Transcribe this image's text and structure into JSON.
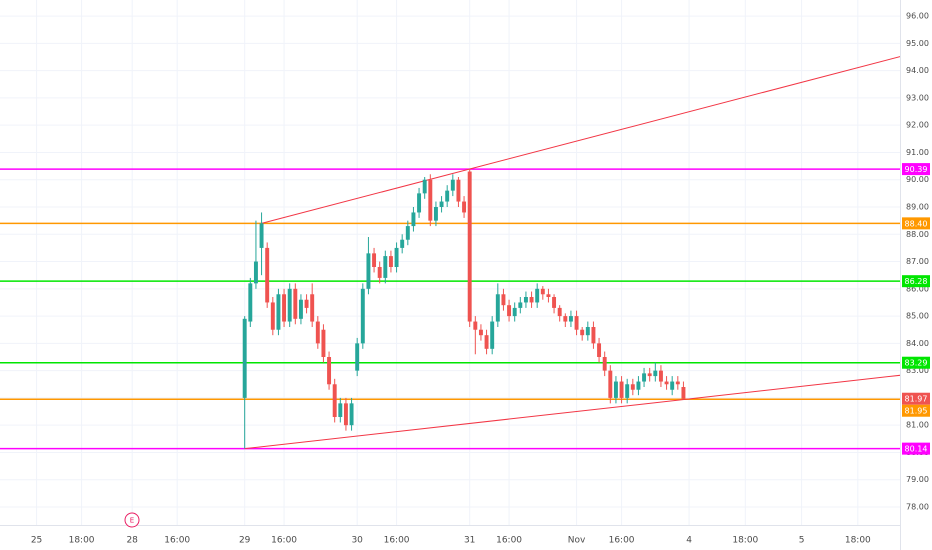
{
  "chart_data": {
    "type": "candlestick",
    "categories": [
      null,
      null,
      null,
      null,
      null,
      null,
      "25",
      null,
      null,
      null,
      null,
      null,
      null,
      null,
      "18:00",
      null,
      null,
      null,
      null,
      null,
      null,
      null,
      null,
      "28",
      null,
      null,
      null,
      null,
      null,
      null,
      null,
      "16:00",
      null,
      null,
      null,
      null,
      null,
      null,
      null,
      null,
      null,
      null,
      null,
      "29",
      null,
      null,
      null,
      null,
      null,
      null,
      "16:00",
      null,
      null,
      null,
      null,
      null,
      null,
      null,
      null,
      null,
      null,
      null,
      null,
      "30",
      null,
      null,
      null,
      null,
      null,
      null,
      "16:00",
      null,
      null,
      null,
      null,
      null,
      null,
      null,
      null,
      null,
      null,
      null,
      null,
      "31",
      null,
      null,
      null,
      null,
      null,
      null,
      "16:00",
      null,
      null,
      null,
      null,
      null,
      null,
      null,
      null,
      null,
      null,
      null,
      "Nov",
      null,
      null,
      null,
      null,
      null,
      null,
      null,
      "16:00",
      null,
      null,
      null,
      null,
      null,
      null,
      null,
      null,
      null,
      null,
      null,
      "4",
      null,
      null,
      null,
      null,
      null,
      null,
      null,
      null,
      null,
      "18:00",
      null,
      null,
      null,
      null,
      null,
      null,
      null,
      null,
      null,
      "5",
      null,
      null,
      null,
      null,
      null,
      null,
      null,
      null,
      null,
      "18:00",
      null,
      null,
      null,
      null,
      null,
      null,
      null
    ],
    "open": [
      null,
      null,
      null,
      null,
      null,
      null,
      null,
      null,
      null,
      null,
      null,
      null,
      null,
      null,
      null,
      null,
      null,
      null,
      null,
      null,
      null,
      null,
      null,
      null,
      null,
      null,
      null,
      null,
      null,
      null,
      null,
      null,
      null,
      null,
      null,
      null,
      null,
      null,
      null,
      null,
      null,
      null,
      null,
      82.0,
      84.8,
      86.2,
      87.5,
      87.5,
      85.5,
      84.5,
      85.8,
      84.8,
      86.0,
      84.9,
      85.6,
      85.8,
      84.8,
      84.5,
      83.5,
      82.5,
      81.3,
      81.8,
      81.0,
      83.0,
      84.0,
      86.0,
      87.3,
      86.8,
      86.4,
      87.2,
      86.8,
      87.5,
      87.8,
      88.3,
      88.8,
      89.5,
      90.0,
      88.5,
      89.0,
      89.2,
      89.6,
      90.0,
      89.2,
      90.3,
      84.8,
      84.5,
      84.3,
      83.8,
      84.8,
      85.8,
      85.4,
      85.0,
      85.3,
      85.5,
      85.7,
      85.5,
      86.0,
      85.8,
      85.7,
      85.3,
      85.0,
      84.8,
      85.0,
      84.5,
      84.3,
      84.6,
      84.0,
      83.5,
      83.0,
      82.0,
      82.6,
      82.0,
      82.5,
      82.3,
      82.6,
      82.9,
      82.8,
      83.0,
      82.6,
      82.3,
      82.6,
      82.4,
      null,
      null,
      null,
      null,
      null,
      null,
      null,
      null,
      null,
      null,
      null,
      null,
      null,
      null,
      null,
      null,
      null,
      null,
      null,
      null,
      null,
      null,
      null,
      null,
      null,
      null,
      null,
      null,
      null,
      null,
      null,
      null,
      null,
      null,
      null,
      null,
      null,
      null
    ],
    "high": [
      null,
      null,
      null,
      null,
      null,
      null,
      null,
      null,
      null,
      null,
      null,
      null,
      null,
      null,
      null,
      null,
      null,
      null,
      null,
      null,
      null,
      null,
      null,
      null,
      null,
      null,
      null,
      null,
      null,
      null,
      null,
      null,
      null,
      null,
      null,
      null,
      null,
      null,
      null,
      null,
      null,
      null,
      null,
      85.0,
      86.4,
      88.5,
      88.8,
      87.7,
      85.7,
      86.0,
      86.0,
      86.2,
      86.2,
      85.8,
      85.8,
      86.2,
      85.0,
      84.7,
      83.7,
      82.7,
      82.0,
      82.0,
      82.0,
      84.2,
      86.2,
      87.9,
      87.5,
      87.0,
      87.4,
      87.4,
      87.7,
      88.0,
      88.5,
      89.0,
      89.7,
      90.1,
      90.2,
      89.2,
      89.4,
      89.8,
      90.2,
      90.1,
      89.4,
      90.39,
      85.0,
      84.7,
      84.5,
      85.0,
      86.2,
      86.0,
      85.6,
      85.5,
      85.7,
      85.9,
      85.9,
      86.2,
      86.1,
      86.0,
      85.8,
      85.4,
      85.1,
      85.2,
      85.2,
      84.6,
      84.8,
      84.8,
      84.2,
      83.7,
      83.2,
      82.8,
      82.8,
      82.7,
      82.7,
      82.8,
      83.1,
      83.1,
      83.3,
      83.2,
      82.8,
      82.8,
      82.8,
      82.6,
      null,
      null,
      null,
      null,
      null,
      null,
      null,
      null,
      null,
      null,
      null,
      null,
      null,
      null,
      null,
      null,
      null,
      null,
      null,
      null,
      null,
      null,
      null,
      null,
      null,
      null,
      null,
      null,
      null,
      null,
      null,
      null,
      null,
      null,
      null,
      null,
      null,
      null
    ],
    "low": [
      null,
      null,
      null,
      null,
      null,
      null,
      null,
      null,
      null,
      null,
      null,
      null,
      null,
      null,
      null,
      null,
      null,
      null,
      null,
      null,
      null,
      null,
      null,
      null,
      null,
      null,
      null,
      null,
      null,
      null,
      null,
      null,
      null,
      null,
      null,
      null,
      null,
      null,
      null,
      null,
      null,
      null,
      null,
      80.14,
      84.6,
      86.0,
      86.5,
      85.3,
      84.3,
      84.3,
      84.6,
      84.6,
      84.7,
      84.7,
      85.1,
      84.6,
      83.8,
      83.3,
      82.3,
      81.1,
      81.1,
      80.8,
      80.8,
      82.8,
      83.8,
      85.8,
      86.6,
      86.2,
      86.2,
      86.6,
      86.6,
      87.3,
      87.6,
      88.1,
      88.6,
      89.3,
      88.3,
      88.3,
      88.8,
      89.0,
      89.4,
      89.0,
      88.6,
      84.6,
      83.6,
      84.1,
      83.6,
      83.6,
      84.6,
      85.2,
      84.8,
      84.8,
      85.1,
      85.3,
      85.3,
      85.3,
      85.6,
      85.5,
      85.1,
      84.8,
      84.6,
      84.6,
      84.3,
      84.1,
      84.1,
      83.8,
      83.3,
      82.8,
      81.8,
      81.8,
      81.8,
      81.8,
      82.1,
      82.1,
      82.4,
      82.6,
      82.6,
      82.4,
      82.3,
      82.1,
      82.3,
      81.95,
      null,
      null,
      null,
      null,
      null,
      null,
      null,
      null,
      null,
      null,
      null,
      null,
      null,
      null,
      null,
      null,
      null,
      null,
      null,
      null,
      null,
      null,
      null,
      null,
      null,
      null,
      null,
      null,
      null,
      null,
      null,
      null,
      null,
      null,
      null,
      null,
      null,
      null
    ],
    "close": [
      null,
      null,
      null,
      null,
      null,
      null,
      null,
      null,
      null,
      null,
      null,
      null,
      null,
      null,
      null,
      null,
      null,
      null,
      null,
      null,
      null,
      null,
      null,
      null,
      null,
      null,
      null,
      null,
      null,
      null,
      null,
      null,
      null,
      null,
      null,
      null,
      null,
      null,
      null,
      null,
      null,
      null,
      null,
      84.9,
      86.2,
      87.0,
      88.4,
      85.5,
      84.5,
      85.8,
      84.8,
      86.0,
      84.9,
      85.6,
      85.3,
      84.8,
      84.0,
      83.5,
      82.5,
      81.3,
      81.8,
      81.0,
      81.8,
      84.0,
      86.0,
      87.3,
      86.8,
      86.4,
      87.2,
      86.8,
      87.5,
      87.8,
      88.3,
      88.8,
      89.5,
      90.0,
      88.5,
      89.0,
      89.2,
      89.6,
      90.0,
      89.2,
      88.8,
      84.8,
      84.5,
      84.3,
      83.8,
      84.8,
      85.8,
      85.4,
      85.0,
      85.3,
      85.5,
      85.7,
      85.5,
      86.0,
      85.8,
      85.7,
      85.3,
      85.0,
      84.8,
      85.0,
      84.5,
      84.3,
      84.6,
      84.0,
      83.5,
      83.0,
      82.0,
      82.6,
      82.0,
      82.5,
      82.3,
      82.6,
      82.9,
      82.8,
      83.0,
      82.6,
      82.5,
      82.6,
      82.5,
      81.97,
      null,
      null,
      null,
      null,
      null,
      null,
      null,
      null,
      null,
      null,
      null,
      null,
      null,
      null,
      null,
      null,
      null,
      null,
      null,
      null,
      null,
      null,
      null,
      null,
      null,
      null,
      null,
      null,
      null,
      null,
      null,
      null,
      null,
      null,
      null,
      null,
      null,
      null
    ],
    "up_color": "#26a69a",
    "down_color": "#ef5350",
    "ylim": [
      77.34,
      96.59
    ],
    "yticks": [
      {
        "value": 78,
        "label": "78.00"
      },
      {
        "value": 79,
        "label": "79.00"
      },
      {
        "value": 80,
        "label": "80.00"
      },
      {
        "value": 81,
        "label": "81.00"
      },
      {
        "value": 82,
        "label": "82.00"
      },
      {
        "value": 83,
        "label": "83.00"
      },
      {
        "value": 84,
        "label": "84.00"
      },
      {
        "value": 85,
        "label": "85.00"
      },
      {
        "value": 86,
        "label": "86.00"
      },
      {
        "value": 87,
        "label": "87.00"
      },
      {
        "value": 88,
        "label": "88.00"
      },
      {
        "value": 89,
        "label": "89.00"
      },
      {
        "value": 90,
        "label": "90.00"
      },
      {
        "value": 91,
        "label": "91.00"
      },
      {
        "value": 92,
        "label": "92.00"
      },
      {
        "value": 93,
        "label": "93.00"
      },
      {
        "value": 94,
        "label": "94.00"
      },
      {
        "value": 95,
        "label": "95.00"
      },
      {
        "value": 96,
        "label": "96.00"
      }
    ],
    "grid": true,
    "levels": [
      {
        "value": 90.39,
        "label": "90.39",
        "color": "#ff00ff"
      },
      {
        "value": 88.4,
        "label": "88.40",
        "color": "#ff9800"
      },
      {
        "value": 86.28,
        "label": "86.28",
        "color": "#00e600"
      },
      {
        "value": 83.29,
        "label": "83.29",
        "color": "#00e600"
      },
      {
        "value": 81.95,
        "label": "81.95",
        "color": "#ff9800"
      },
      {
        "value": 80.14,
        "label": "80.14",
        "color": "#ff00ff"
      }
    ],
    "last_price": {
      "value": 81.97,
      "label": "81.97",
      "color": "#ef5350"
    },
    "trendlines": [
      {
        "color": "#f23645",
        "x": [
          46,
          160
        ],
        "values": [
          88.4,
          94.54
        ]
      },
      {
        "color": "#f23645",
        "x": [
          43,
          160
        ],
        "values": [
          80.14,
          82.84
        ]
      }
    ],
    "event": "E"
  }
}
